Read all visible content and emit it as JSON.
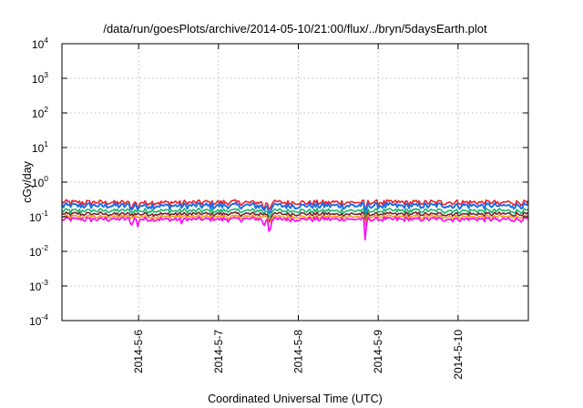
{
  "chart_data": {
    "type": "line",
    "title": "/data/run/goesPlots/archive/2014-05-10/21:00/flux/../bryn/5daysEarth.plot",
    "xlabel": "Coordinated Universal Time (UTC)",
    "ylabel": "cGy/day",
    "yscale": "log",
    "ylim": [
      0.0001,
      10000
    ],
    "xlim": [
      0,
      5.84
    ],
    "grid": true,
    "y_ticks": [
      {
        "base": "10",
        "exp": "4",
        "value": 10000
      },
      {
        "base": "10",
        "exp": "3",
        "value": 1000
      },
      {
        "base": "10",
        "exp": "2",
        "value": 100
      },
      {
        "base": "10",
        "exp": "1",
        "value": 10
      },
      {
        "base": "10",
        "exp": "0",
        "value": 1
      },
      {
        "base": "10",
        "exp": "-1",
        "value": 0.1
      },
      {
        "base": "10",
        "exp": "-2",
        "value": 0.01
      },
      {
        "base": "10",
        "exp": "-3",
        "value": 0.001
      },
      {
        "base": "10",
        "exp": "-4",
        "value": 0.0001
      }
    ],
    "x_ticks": [
      {
        "label": "2014-5-6",
        "value": 0.96
      },
      {
        "label": "2014-5-7",
        "value": 1.96
      },
      {
        "label": "2014-5-8",
        "value": 2.96
      },
      {
        "label": "2014-5-9",
        "value": 3.96
      },
      {
        "label": "2014-5-10",
        "value": 4.96
      }
    ],
    "series": [
      {
        "color": "#e8202a",
        "base": 0.26,
        "amp": 0.16
      },
      {
        "color": "#1e6ee6",
        "base": 0.21,
        "amp": 0.18
      },
      {
        "color": "#18b868",
        "base": 0.15,
        "amp": 0.14
      },
      {
        "color": "#7a2030",
        "base": 0.12,
        "amp": 0.12
      },
      {
        "color": "#f0a020",
        "base": 0.1,
        "amp": 0.12
      },
      {
        "color": "#ff00ff",
        "base": 0.085,
        "amp": 0.14
      }
    ],
    "dips": [
      {
        "x": 0.87,
        "min": 0.045
      },
      {
        "x": 0.95,
        "min": 0.05
      },
      {
        "x": 2.53,
        "min": 0.04
      },
      {
        "x": 2.6,
        "min": 0.008
      },
      {
        "x": 3.8,
        "min": 0.0055
      },
      {
        "x": 1.5,
        "min": 0.06
      },
      {
        "x": 5.48,
        "min": 0.065
      }
    ]
  }
}
